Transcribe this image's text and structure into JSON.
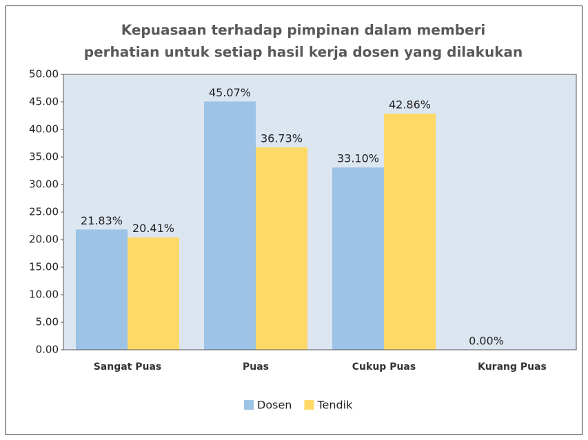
{
  "chart_data": {
    "type": "bar",
    "title": [
      "Kepuasaan terhadap pimpinan dalam memberi",
      "perhatian untuk setiap hasil kerja dosen yang dilakukan"
    ],
    "categories": [
      "Sangat Puas",
      "Puas",
      "Cukup Puas",
      "Kurang Puas"
    ],
    "series": [
      {
        "name": "Dosen",
        "color": "#9dc3e6",
        "values": [
          21.83,
          45.07,
          33.1,
          0.0
        ],
        "value_labels": [
          "21.83%",
          "45.07%",
          "33.10%",
          "0.00%"
        ]
      },
      {
        "name": "Tendik",
        "color": "#ffd966",
        "values": [
          20.41,
          36.73,
          42.86,
          null
        ],
        "value_labels": [
          "20.41%",
          "36.73%",
          "42.86%",
          null
        ]
      }
    ],
    "ylim": [
      0,
      50
    ],
    "yticks": [
      {
        "value": 0,
        "label": "0.00"
      },
      {
        "value": 5,
        "label": "5.00"
      },
      {
        "value": 10,
        "label": "10.00"
      },
      {
        "value": 15,
        "label": "15.00"
      },
      {
        "value": 20,
        "label": "20.00"
      },
      {
        "value": 25,
        "label": "25.00"
      },
      {
        "value": 30,
        "label": "30.00"
      },
      {
        "value": 35,
        "label": "35.00"
      },
      {
        "value": 40,
        "label": "40.00"
      },
      {
        "value": 45,
        "label": "45.00"
      },
      {
        "value": 50,
        "label": "50.00"
      }
    ],
    "legend": "bottom"
  }
}
